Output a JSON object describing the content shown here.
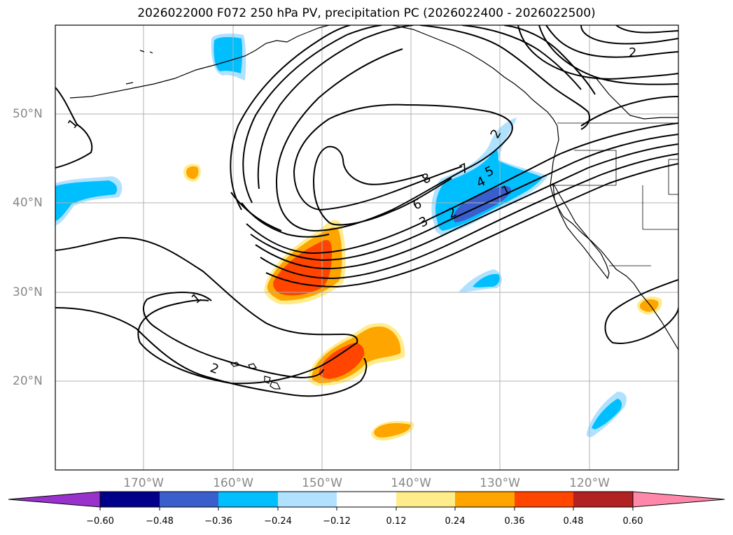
{
  "title": "2026022000 F072 250 hPa PV, precipitation PC (2026022400 - 2026022500)",
  "lat_labels": [
    "50°N",
    "40°N",
    "30°N",
    "20°N"
  ],
  "lon_labels": [
    "170°W",
    "160°W",
    "150°W",
    "140°W",
    "130°W",
    "120°W"
  ],
  "contour_labels": [
    "1",
    "1",
    "2",
    "2",
    "8",
    "7",
    "6",
    "5",
    "4",
    "3",
    "2",
    "1",
    "2"
  ],
  "colorbar": {
    "ticks": [
      "−0.60",
      "−0.48",
      "−0.36",
      "−0.24",
      "−0.12",
      "0.12",
      "0.24",
      "0.36",
      "0.48",
      "0.60"
    ],
    "colors": [
      "#9932cc",
      "#00008b",
      "#3a5fcd",
      "#00bfff",
      "#b0e2ff",
      "#ffffff",
      "#ffec8b",
      "#ffa500",
      "#ff4500",
      "#b22222",
      "#ff88aa"
    ]
  }
}
